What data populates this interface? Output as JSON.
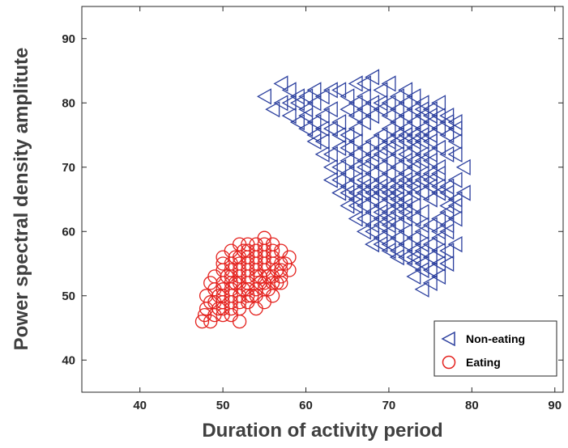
{
  "chart_data": {
    "type": "scatter",
    "title": "",
    "xlabel": "Duration of activity period",
    "ylabel": "Power spectral density amplitute",
    "xlim": [
      33,
      91
    ],
    "ylim": [
      35,
      95
    ],
    "xticks": [
      40,
      50,
      60,
      70,
      80,
      90
    ],
    "yticks": [
      40,
      50,
      60,
      70,
      80,
      90
    ],
    "grid": false,
    "legend_position": "bottom-right",
    "series": [
      {
        "name": "Non-eating",
        "marker": "triangle-left",
        "color": "#2b3f9e",
        "points": [
          [
            55,
            81
          ],
          [
            57,
            83
          ],
          [
            58,
            82
          ],
          [
            56,
            79
          ],
          [
            59,
            80
          ],
          [
            58,
            78
          ],
          [
            60,
            79
          ],
          [
            61,
            80
          ],
          [
            59,
            77
          ],
          [
            60,
            76
          ],
          [
            61,
            77
          ],
          [
            62,
            78
          ],
          [
            63,
            79
          ],
          [
            62,
            76
          ],
          [
            61,
            74
          ],
          [
            63,
            72
          ],
          [
            64,
            73
          ],
          [
            65,
            75
          ],
          [
            66,
            76
          ],
          [
            64,
            77
          ],
          [
            66,
            78
          ],
          [
            67,
            79
          ],
          [
            65,
            81
          ],
          [
            67,
            83
          ],
          [
            68,
            84
          ],
          [
            66,
            83
          ],
          [
            69,
            82
          ],
          [
            70,
            83
          ],
          [
            71,
            81
          ],
          [
            72,
            82
          ],
          [
            73,
            81
          ],
          [
            74,
            80
          ],
          [
            75,
            79
          ],
          [
            76,
            80
          ],
          [
            77,
            78
          ],
          [
            78,
            76
          ],
          [
            78,
            74
          ],
          [
            77,
            72
          ],
          [
            79,
            70
          ],
          [
            78,
            68
          ],
          [
            79,
            66
          ],
          [
            77,
            64
          ],
          [
            78,
            62
          ],
          [
            77,
            60
          ],
          [
            78,
            58
          ],
          [
            76,
            57
          ],
          [
            77,
            55
          ],
          [
            76,
            53
          ],
          [
            75,
            52
          ],
          [
            74,
            51
          ],
          [
            73,
            53
          ],
          [
            74,
            55
          ],
          [
            75,
            56
          ],
          [
            76,
            59
          ],
          [
            74,
            58
          ],
          [
            73,
            57
          ],
          [
            72,
            58
          ],
          [
            71,
            57
          ],
          [
            70,
            58
          ],
          [
            69,
            59
          ],
          [
            68,
            60
          ],
          [
            69,
            62
          ],
          [
            70,
            61
          ],
          [
            71,
            63
          ],
          [
            72,
            64
          ],
          [
            73,
            66
          ],
          [
            74,
            63
          ],
          [
            75,
            65
          ],
          [
            76,
            66
          ],
          [
            75,
            67
          ],
          [
            74,
            69
          ],
          [
            73,
            70
          ],
          [
            72,
            69
          ],
          [
            71,
            68
          ],
          [
            70,
            67
          ],
          [
            69,
            66
          ],
          [
            68,
            65
          ],
          [
            67,
            64
          ],
          [
            66,
            65
          ],
          [
            67,
            66
          ],
          [
            68,
            67
          ],
          [
            69,
            68
          ],
          [
            70,
            69
          ],
          [
            71,
            70
          ],
          [
            72,
            72
          ],
          [
            73,
            73
          ],
          [
            74,
            74
          ],
          [
            75,
            75
          ],
          [
            76,
            73
          ],
          [
            75,
            72
          ],
          [
            74,
            71
          ],
          [
            73,
            75
          ],
          [
            72,
            76
          ],
          [
            71,
            77
          ],
          [
            70,
            76
          ],
          [
            69,
            75
          ],
          [
            68,
            74
          ],
          [
            67,
            73
          ],
          [
            66,
            72
          ],
          [
            65,
            71
          ],
          [
            64,
            70
          ],
          [
            65,
            69
          ],
          [
            66,
            68
          ],
          [
            67,
            70
          ],
          [
            68,
            71
          ],
          [
            69,
            72
          ],
          [
            70,
            73
          ],
          [
            71,
            74
          ],
          [
            72,
            75
          ],
          [
            73,
            77
          ],
          [
            74,
            78
          ],
          [
            75,
            77
          ],
          [
            76,
            76
          ],
          [
            74,
            76
          ],
          [
            72,
            78
          ],
          [
            71,
            79
          ],
          [
            70,
            80
          ],
          [
            69,
            79
          ],
          [
            68,
            78
          ],
          [
            67,
            77
          ],
          [
            66,
            74
          ],
          [
            65,
            73
          ],
          [
            64,
            75
          ],
          [
            63,
            76
          ],
          [
            62,
            74
          ],
          [
            63,
            70
          ],
          [
            64,
            68
          ],
          [
            65,
            67
          ],
          [
            66,
            66
          ],
          [
            67,
            68
          ],
          [
            68,
            69
          ],
          [
            69,
            70
          ],
          [
            70,
            71
          ],
          [
            71,
            72
          ],
          [
            72,
            71
          ],
          [
            73,
            68
          ],
          [
            72,
            67
          ],
          [
            71,
            66
          ],
          [
            70,
            65
          ],
          [
            69,
            64
          ],
          [
            68,
            63
          ],
          [
            67,
            62
          ],
          [
            68,
            61
          ],
          [
            69,
            61
          ],
          [
            70,
            62
          ],
          [
            71,
            61
          ],
          [
            72,
            62
          ],
          [
            73,
            62
          ],
          [
            74,
            61
          ],
          [
            75,
            61
          ],
          [
            76,
            62
          ],
          [
            77,
            63
          ],
          [
            74,
            60
          ],
          [
            73,
            59
          ],
          [
            72,
            60
          ],
          [
            71,
            59
          ],
          [
            70,
            60
          ],
          [
            72,
            56
          ],
          [
            73,
            55
          ],
          [
            74,
            54
          ],
          [
            75,
            54
          ],
          [
            76,
            55
          ],
          [
            77,
            57
          ],
          [
            72,
            65
          ],
          [
            71,
            65
          ],
          [
            73,
            64
          ],
          [
            74,
            66
          ],
          [
            75,
            68
          ],
          [
            76,
            69
          ],
          [
            77,
            67
          ],
          [
            78,
            65
          ],
          [
            76,
            70
          ],
          [
            75,
            71
          ],
          [
            74,
            72
          ],
          [
            73,
            71
          ],
          [
            70,
            63
          ],
          [
            69,
            63
          ],
          [
            71,
            64
          ],
          [
            72,
            63
          ],
          [
            62,
            81
          ],
          [
            61,
            82
          ],
          [
            60,
            81
          ],
          [
            57,
            80
          ],
          [
            58,
            80
          ],
          [
            63,
            82
          ],
          [
            64,
            82
          ],
          [
            65,
            79
          ],
          [
            66,
            80
          ],
          [
            67,
            81
          ],
          [
            68,
            80
          ],
          [
            69,
            80
          ],
          [
            70,
            78
          ],
          [
            71,
            75
          ],
          [
            72,
            74
          ],
          [
            73,
            74
          ],
          [
            74,
            75
          ],
          [
            75,
            74
          ],
          [
            77,
            75
          ],
          [
            78,
            72
          ],
          [
            66,
            70
          ],
          [
            67,
            71
          ],
          [
            68,
            72
          ],
          [
            69,
            73
          ],
          [
            70,
            74
          ],
          [
            65,
            66
          ],
          [
            66,
            64
          ],
          [
            67,
            67
          ],
          [
            68,
            66
          ],
          [
            69,
            67
          ],
          [
            70,
            66
          ],
          [
            71,
            67
          ],
          [
            72,
            68
          ],
          [
            73,
            67
          ],
          [
            74,
            68
          ],
          [
            75,
            69
          ],
          [
            76,
            67
          ],
          [
            77,
            66
          ],
          [
            78,
            64
          ],
          [
            77,
            61
          ],
          [
            76,
            60
          ],
          [
            75,
            58
          ],
          [
            74,
            57
          ],
          [
            73,
            56
          ],
          [
            71,
            56
          ],
          [
            70,
            57
          ],
          [
            69,
            58
          ],
          [
            68,
            58
          ],
          [
            67,
            60
          ],
          [
            66,
            62
          ],
          [
            65,
            64
          ],
          [
            64,
            66
          ],
          [
            63,
            68
          ],
          [
            62,
            72
          ],
          [
            61,
            75
          ],
          [
            60,
            78
          ],
          [
            59,
            81
          ],
          [
            72,
            80
          ],
          [
            73,
            79
          ],
          [
            74,
            79
          ],
          [
            75,
            78
          ],
          [
            76,
            78
          ],
          [
            77,
            77
          ],
          [
            78,
            77
          ]
        ]
      },
      {
        "name": "Eating",
        "marker": "circle",
        "color": "#e4221e",
        "points": [
          [
            47.5,
            46
          ],
          [
            48.5,
            46
          ],
          [
            49,
            47
          ],
          [
            48,
            48
          ],
          [
            49,
            49
          ],
          [
            50,
            48
          ],
          [
            51,
            47
          ],
          [
            52,
            46
          ],
          [
            51,
            49
          ],
          [
            50,
            50
          ],
          [
            49,
            51
          ],
          [
            48.5,
            52
          ],
          [
            49,
            53
          ],
          [
            50,
            54
          ],
          [
            51,
            55
          ],
          [
            50,
            56
          ],
          [
            51,
            57
          ],
          [
            52,
            58
          ],
          [
            53,
            58
          ],
          [
            52,
            56
          ],
          [
            53,
            57
          ],
          [
            54,
            58
          ],
          [
            55,
            59
          ],
          [
            56,
            58
          ],
          [
            57,
            57
          ],
          [
            58,
            56
          ],
          [
            57,
            55
          ],
          [
            58,
            54
          ],
          [
            57,
            53
          ],
          [
            56,
            52
          ],
          [
            55,
            51
          ],
          [
            56,
            50
          ],
          [
            55,
            49
          ],
          [
            54,
            50
          ],
          [
            53,
            51
          ],
          [
            52,
            50
          ],
          [
            51,
            51
          ],
          [
            50,
            52
          ],
          [
            51,
            53
          ],
          [
            52,
            54
          ],
          [
            53,
            55
          ],
          [
            54,
            56
          ],
          [
            55,
            57
          ],
          [
            56,
            56
          ],
          [
            55,
            55
          ],
          [
            54,
            54
          ],
          [
            53,
            53
          ],
          [
            52,
            52
          ],
          [
            53,
            49
          ],
          [
            54,
            48
          ],
          [
            52,
            48
          ],
          [
            51,
            50
          ],
          [
            50,
            49
          ],
          [
            49.5,
            50
          ],
          [
            48,
            50
          ],
          [
            50.5,
            53
          ],
          [
            51.5,
            52
          ],
          [
            52.5,
            51
          ],
          [
            53.5,
            50
          ],
          [
            54.5,
            52
          ],
          [
            55.5,
            53
          ],
          [
            56.5,
            54
          ],
          [
            57.5,
            55
          ],
          [
            56,
            55
          ],
          [
            55,
            54
          ],
          [
            54,
            53
          ],
          [
            53,
            52
          ],
          [
            54,
            55
          ],
          [
            55,
            56
          ],
          [
            56,
            57
          ],
          [
            53,
            54
          ],
          [
            52,
            55
          ],
          [
            51,
            54
          ],
          [
            50,
            55
          ],
          [
            51.5,
            56
          ],
          [
            52.5,
            57
          ],
          [
            54,
            57
          ],
          [
            55,
            58
          ],
          [
            56,
            53
          ],
          [
            57,
            52
          ],
          [
            55,
            52
          ],
          [
            54,
            51
          ],
          [
            53,
            50
          ],
          [
            52,
            49
          ],
          [
            51,
            48
          ],
          [
            50,
            47
          ],
          [
            49.5,
            48
          ],
          [
            48.5,
            49
          ],
          [
            47.8,
            47
          ],
          [
            50,
            51
          ],
          [
            51,
            52
          ],
          [
            52,
            53
          ],
          [
            53,
            56
          ],
          [
            54.5,
            53
          ],
          [
            55.5,
            51
          ],
          [
            56.5,
            52
          ],
          [
            57,
            54
          ]
        ]
      }
    ]
  }
}
